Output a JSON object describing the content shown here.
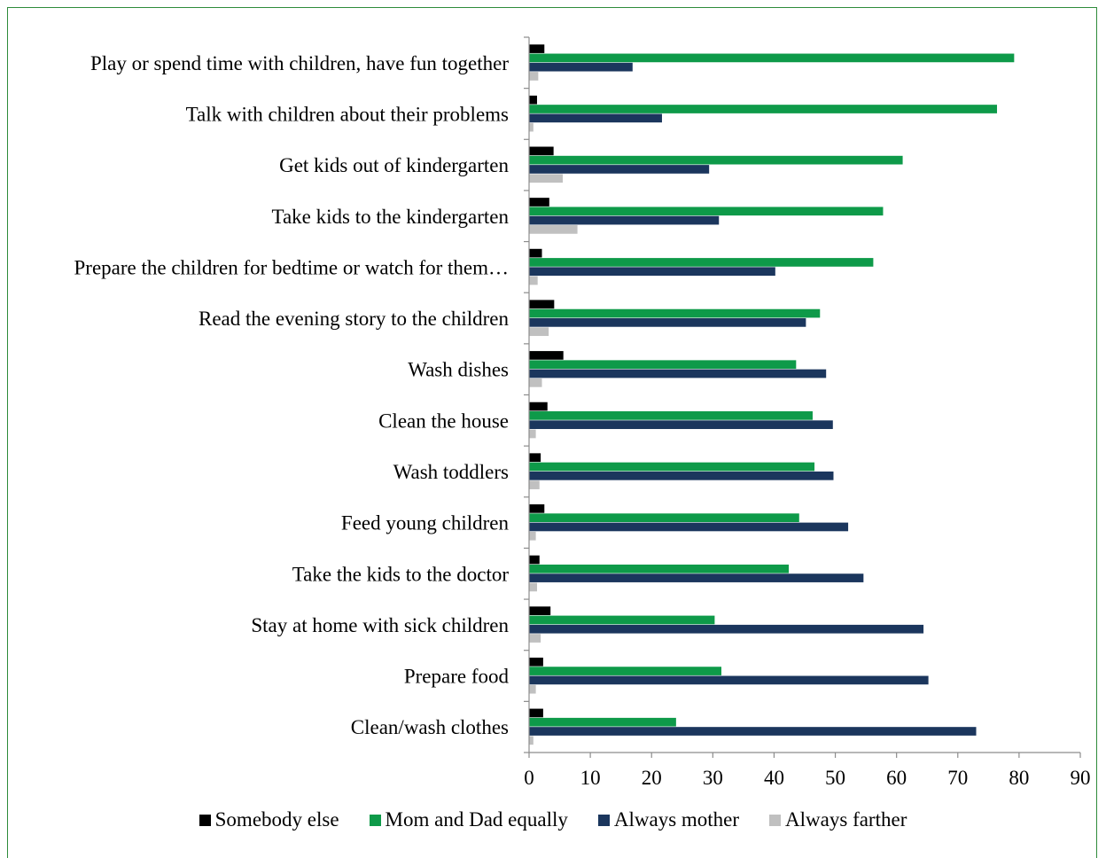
{
  "chart_data": {
    "type": "bar",
    "orientation": "horizontal",
    "categories": [
      "Play or spend time with children, have fun together",
      "Talk with children about their problems",
      "Get kids out of kindergarten",
      "Take kids to the kindergarten",
      "Prepare the children for bedtime or watch for them…",
      "Read the evening story to the children",
      "Wash dishes",
      "Clean the house",
      "Wash toddlers",
      "Feed young children",
      "Take the kids to the doctor",
      "Stay at home with sick children",
      "Prepare food",
      "Clean/wash clothes"
    ],
    "series": [
      {
        "name": "Somebody else",
        "color": "#000000",
        "values": [
          2.5,
          1.3,
          4,
          3.3,
          2.1,
          4.1,
          5.6,
          3,
          1.9,
          2.5,
          1.7,
          3.5,
          2.3,
          2.3
        ]
      },
      {
        "name": "Mom and Dad equally",
        "color": "#0e9a49",
        "values": [
          79.2,
          76.4,
          61,
          57.8,
          56.2,
          47.5,
          43.6,
          46.3,
          46.6,
          44.1,
          42.4,
          30.3,
          31.4,
          24
        ]
      },
      {
        "name": "Always mother",
        "color": "#1b365d",
        "values": [
          16.9,
          21.7,
          29.4,
          31,
          40.2,
          45.2,
          48.5,
          49.6,
          49.7,
          52.1,
          54.6,
          64.4,
          65.2,
          73
        ]
      },
      {
        "name": "Always farther",
        "color": "#c0c0c0",
        "values": [
          1.5,
          0.7,
          5.5,
          7.9,
          1.4,
          3.2,
          2.1,
          1.1,
          1.7,
          1.1,
          1.3,
          1.9,
          1.1,
          0.7
        ]
      }
    ],
    "x_ticks": [
      "0",
      "10",
      "20",
      "30",
      "40",
      "50",
      "60",
      "70",
      "80",
      "90"
    ],
    "xlim": [
      0,
      90
    ],
    "grid": false,
    "legend_position": "bottom"
  }
}
